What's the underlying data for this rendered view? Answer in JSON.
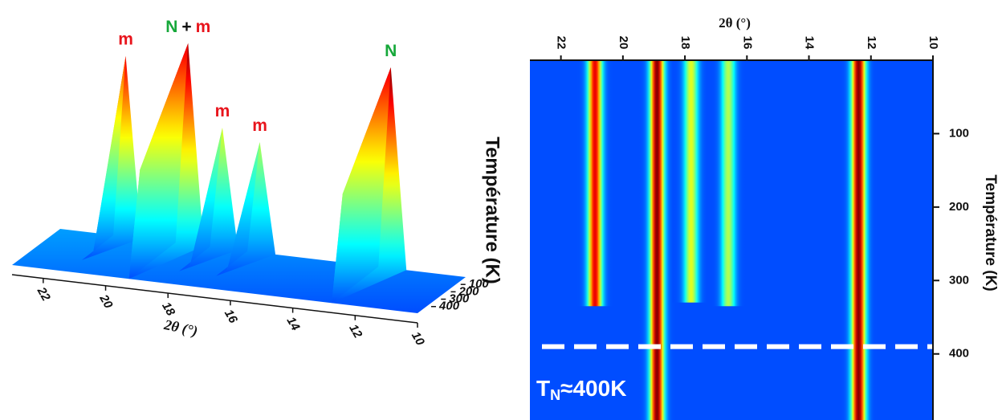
{
  "chart_data": [
    {
      "type": "surface3d",
      "xlabel": "2θ (°)",
      "xlim": [
        23,
        10
      ],
      "xticks": [
        22,
        20,
        18,
        16,
        14,
        12,
        10
      ],
      "zlim": [
        0,
        490
      ],
      "zticks": [
        100,
        200,
        300,
        400
      ],
      "annotations": [
        [
          {
            "text": "m",
            "color": "#e8141c"
          }
        ],
        [
          {
            "text": "N",
            "color": "#16a83a"
          },
          {
            "text": "+",
            "color": "#111111"
          },
          {
            "text": "m",
            "color": "#e8141c"
          }
        ],
        [
          {
            "text": "m",
            "color": "#e8141c"
          }
        ],
        [
          {
            "text": "m",
            "color": "#e8141c"
          }
        ],
        [
          {
            "text": "N",
            "color": "#16a83a"
          }
        ]
      ]
    },
    {
      "type": "heatmap",
      "xlabel": "2θ (°)",
      "ylabel": "Température (K)",
      "xlim": [
        23,
        10
      ],
      "xticks": [
        22,
        20,
        18,
        16,
        14,
        12,
        10
      ],
      "ylim": [
        0,
        490
      ],
      "yticks": [
        100,
        200,
        300,
        400
      ],
      "peaks": {
        "x": [
          20.9,
          18.9,
          17.8,
          16.6,
          12.4
        ],
        "tmax": [
          335,
          490,
          330,
          335,
          490
        ],
        "intensity": [
          0.9,
          1.0,
          0.6,
          0.55,
          1.0
        ]
      },
      "transition": 390,
      "transition_label": [
        {
          "text": "T"
        },
        {
          "text": "N",
          "sub": true
        },
        {
          "text": "≈400K"
        }
      ]
    }
  ],
  "side_label": "Température (K)"
}
